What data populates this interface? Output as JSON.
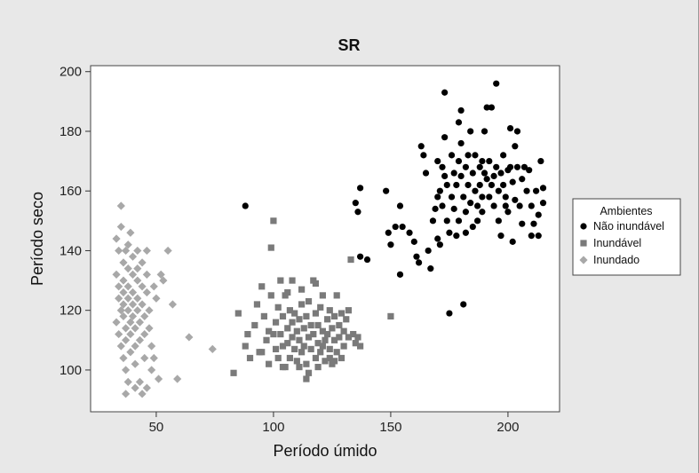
{
  "chart_data": {
    "type": "scatter",
    "title": "SR",
    "xlabel": "Período úmido",
    "ylabel": "Período seco",
    "xlim": [
      22,
      222
    ],
    "ylim": [
      86,
      202
    ],
    "xticks": [
      50,
      100,
      150,
      200
    ],
    "yticks": [
      100,
      120,
      140,
      160,
      180,
      200
    ],
    "grid": false,
    "legend": {
      "placement": "right",
      "title": "Ambientes"
    },
    "series": [
      {
        "name": "Não inundável",
        "marker": "circle",
        "color": "#000000",
        "points": [
          [
            88,
            155
          ],
          [
            135,
            156
          ],
          [
            137,
            161
          ],
          [
            136,
            153
          ],
          [
            137,
            138
          ],
          [
            140,
            137
          ],
          [
            148,
            160
          ],
          [
            149,
            146
          ],
          [
            150,
            142
          ],
          [
            154,
            155
          ],
          [
            152,
            148
          ],
          [
            154,
            132
          ],
          [
            155,
            148
          ],
          [
            158,
            146
          ],
          [
            160,
            143
          ],
          [
            161,
            138
          ],
          [
            162,
            136
          ],
          [
            163,
            175
          ],
          [
            164,
            172
          ],
          [
            165,
            166
          ],
          [
            166,
            140
          ],
          [
            167,
            134
          ],
          [
            168,
            150
          ],
          [
            169,
            154
          ],
          [
            170,
            170
          ],
          [
            170,
            158
          ],
          [
            170,
            144
          ],
          [
            171,
            160
          ],
          [
            171,
            142
          ],
          [
            172,
            168
          ],
          [
            172,
            155
          ],
          [
            173,
            178
          ],
          [
            173,
            193
          ],
          [
            173,
            165
          ],
          [
            174,
            162
          ],
          [
            174,
            150
          ],
          [
            175,
            146
          ],
          [
            175,
            119
          ],
          [
            176,
            172
          ],
          [
            176,
            158
          ],
          [
            177,
            166
          ],
          [
            177,
            154
          ],
          [
            178,
            145
          ],
          [
            178,
            162
          ],
          [
            179,
            170
          ],
          [
            179,
            183
          ],
          [
            179,
            150
          ],
          [
            180,
            165
          ],
          [
            180,
            187
          ],
          [
            180,
            176
          ],
          [
            181,
            158
          ],
          [
            181,
            122
          ],
          [
            182,
            168
          ],
          [
            182,
            153
          ],
          [
            182,
            146
          ],
          [
            183,
            172
          ],
          [
            183,
            162
          ],
          [
            184,
            180
          ],
          [
            184,
            156
          ],
          [
            185,
            166
          ],
          [
            185,
            148
          ],
          [
            186,
            172
          ],
          [
            186,
            160
          ],
          [
            187,
            155
          ],
          [
            187,
            150
          ],
          [
            188,
            168
          ],
          [
            188,
            162
          ],
          [
            189,
            170
          ],
          [
            189,
            158
          ],
          [
            189,
            153
          ],
          [
            190,
            166
          ],
          [
            190,
            180
          ],
          [
            191,
            164
          ],
          [
            191,
            188
          ],
          [
            192,
            158
          ],
          [
            192,
            170
          ],
          [
            193,
            188
          ],
          [
            193,
            162
          ],
          [
            194,
            165
          ],
          [
            194,
            155
          ],
          [
            195,
            196
          ],
          [
            195,
            168
          ],
          [
            196,
            160
          ],
          [
            196,
            150
          ],
          [
            197,
            166
          ],
          [
            197,
            145
          ],
          [
            198,
            172
          ],
          [
            198,
            162
          ],
          [
            199,
            158
          ],
          [
            199,
            155
          ],
          [
            200,
            167
          ],
          [
            200,
            153
          ],
          [
            201,
            168
          ],
          [
            201,
            181
          ],
          [
            202,
            163
          ],
          [
            202,
            143
          ],
          [
            203,
            157
          ],
          [
            203,
            175
          ],
          [
            204,
            180
          ],
          [
            204,
            168
          ],
          [
            205,
            155
          ],
          [
            206,
            164
          ],
          [
            206,
            149
          ],
          [
            207,
            168
          ],
          [
            208,
            160
          ],
          [
            209,
            167
          ],
          [
            210,
            155
          ],
          [
            210,
            145
          ],
          [
            211,
            149
          ],
          [
            212,
            160
          ],
          [
            213,
            152
          ],
          [
            215,
            161
          ],
          [
            215,
            156
          ],
          [
            214,
            170
          ],
          [
            213,
            145
          ]
        ]
      },
      {
        "name": "Inundável",
        "marker": "square",
        "color": "#7a7a7a",
        "points": [
          [
            83,
            99
          ],
          [
            85,
            119
          ],
          [
            88,
            108
          ],
          [
            89,
            112
          ],
          [
            90,
            104
          ],
          [
            92,
            115
          ],
          [
            93,
            122
          ],
          [
            94,
            106
          ],
          [
            95,
            128
          ],
          [
            96,
            118
          ],
          [
            97,
            110
          ],
          [
            98,
            102
          ],
          [
            99,
            141
          ],
          [
            99,
            125
          ],
          [
            100,
            150
          ],
          [
            100,
            112
          ],
          [
            101,
            116
          ],
          [
            101,
            107
          ],
          [
            102,
            121
          ],
          [
            102,
            104
          ],
          [
            103,
            130
          ],
          [
            103,
            112
          ],
          [
            104,
            118
          ],
          [
            104,
            108
          ],
          [
            105,
            101
          ],
          [
            105,
            125
          ],
          [
            106,
            114
          ],
          [
            106,
            109
          ],
          [
            107,
            120
          ],
          [
            107,
            104
          ],
          [
            108,
            116
          ],
          [
            108,
            111
          ],
          [
            108,
            130
          ],
          [
            109,
            107
          ],
          [
            109,
            119
          ],
          [
            110,
            113
          ],
          [
            110,
            103
          ],
          [
            111,
            117
          ],
          [
            111,
            110
          ],
          [
            112,
            122
          ],
          [
            112,
            106
          ],
          [
            112,
            127
          ],
          [
            113,
            114
          ],
          [
            113,
            108
          ],
          [
            114,
            118
          ],
          [
            114,
            102
          ],
          [
            114,
            97
          ],
          [
            115,
            111
          ],
          [
            115,
            123
          ],
          [
            116,
            115
          ],
          [
            116,
            107
          ],
          [
            117,
            130
          ],
          [
            117,
            112
          ],
          [
            118,
            119
          ],
          [
            118,
            104
          ],
          [
            119,
            115
          ],
          [
            119,
            109
          ],
          [
            120,
            121
          ],
          [
            120,
            106
          ],
          [
            121,
            113
          ],
          [
            121,
            125
          ],
          [
            122,
            110
          ],
          [
            122,
            103
          ],
          [
            123,
            117
          ],
          [
            123,
            112
          ],
          [
            124,
            120
          ],
          [
            124,
            107
          ],
          [
            125,
            114
          ],
          [
            125,
            102
          ],
          [
            126,
            118
          ],
          [
            126,
            110
          ],
          [
            127,
            125
          ],
          [
            127,
            106
          ],
          [
            128,
            115
          ],
          [
            128,
            111
          ],
          [
            129,
            119
          ],
          [
            129,
            104
          ],
          [
            130,
            113
          ],
          [
            130,
            108
          ],
          [
            131,
            117
          ],
          [
            132,
            120
          ],
          [
            132,
            111
          ],
          [
            133,
            137
          ],
          [
            134,
            112
          ],
          [
            135,
            109
          ],
          [
            136,
            111
          ],
          [
            137,
            108
          ],
          [
            150,
            118
          ],
          [
            104,
            101
          ],
          [
            106,
            126
          ],
          [
            111,
            101
          ],
          [
            119,
            101
          ],
          [
            126,
            103
          ],
          [
            95,
            106
          ],
          [
            98,
            113
          ],
          [
            115,
            99
          ],
          [
            118,
            129
          ],
          [
            121,
            108
          ],
          [
            124,
            104
          ]
        ]
      },
      {
        "name": "Inundado",
        "marker": "diamond",
        "color": "#a8a8a8",
        "points": [
          [
            33,
            144
          ],
          [
            34,
            140
          ],
          [
            35,
            155
          ],
          [
            35,
            148
          ],
          [
            33,
            132
          ],
          [
            34,
            128
          ],
          [
            34,
            124
          ],
          [
            35,
            120
          ],
          [
            33,
            116
          ],
          [
            34,
            112
          ],
          [
            35,
            108
          ],
          [
            36,
            104
          ],
          [
            36,
            136
          ],
          [
            36,
            130
          ],
          [
            36,
            126
          ],
          [
            36,
            122
          ],
          [
            36,
            118
          ],
          [
            37,
            114
          ],
          [
            37,
            110
          ],
          [
            37,
            100
          ],
          [
            37,
            92
          ],
          [
            38,
            142
          ],
          [
            38,
            134
          ],
          [
            38,
            128
          ],
          [
            38,
            124
          ],
          [
            38,
            120
          ],
          [
            39,
            116
          ],
          [
            39,
            112
          ],
          [
            39,
            106
          ],
          [
            40,
            138
          ],
          [
            40,
            132
          ],
          [
            40,
            126
          ],
          [
            40,
            122
          ],
          [
            40,
            118
          ],
          [
            41,
            114
          ],
          [
            41,
            108
          ],
          [
            41,
            102
          ],
          [
            42,
            140
          ],
          [
            42,
            130
          ],
          [
            42,
            124
          ],
          [
            42,
            120
          ],
          [
            43,
            116
          ],
          [
            43,
            110
          ],
          [
            43,
            96
          ],
          [
            44,
            136
          ],
          [
            44,
            128
          ],
          [
            44,
            122
          ],
          [
            45,
            118
          ],
          [
            45,
            112
          ],
          [
            45,
            104
          ],
          [
            46,
            132
          ],
          [
            46,
            126
          ],
          [
            46,
            94
          ],
          [
            47,
            120
          ],
          [
            47,
            114
          ],
          [
            48,
            108
          ],
          [
            48,
            100
          ],
          [
            49,
            128
          ],
          [
            49,
            104
          ],
          [
            50,
            124
          ],
          [
            51,
            97
          ],
          [
            52,
            132
          ],
          [
            53,
            130
          ],
          [
            55,
            140
          ],
          [
            57,
            122
          ],
          [
            59,
            97
          ],
          [
            64,
            111
          ],
          [
            74,
            107
          ],
          [
            38,
            96
          ],
          [
            41,
            94
          ],
          [
            44,
            92
          ],
          [
            39,
            146
          ],
          [
            37,
            140
          ],
          [
            42,
            134
          ],
          [
            46,
            140
          ]
        ]
      }
    ]
  }
}
